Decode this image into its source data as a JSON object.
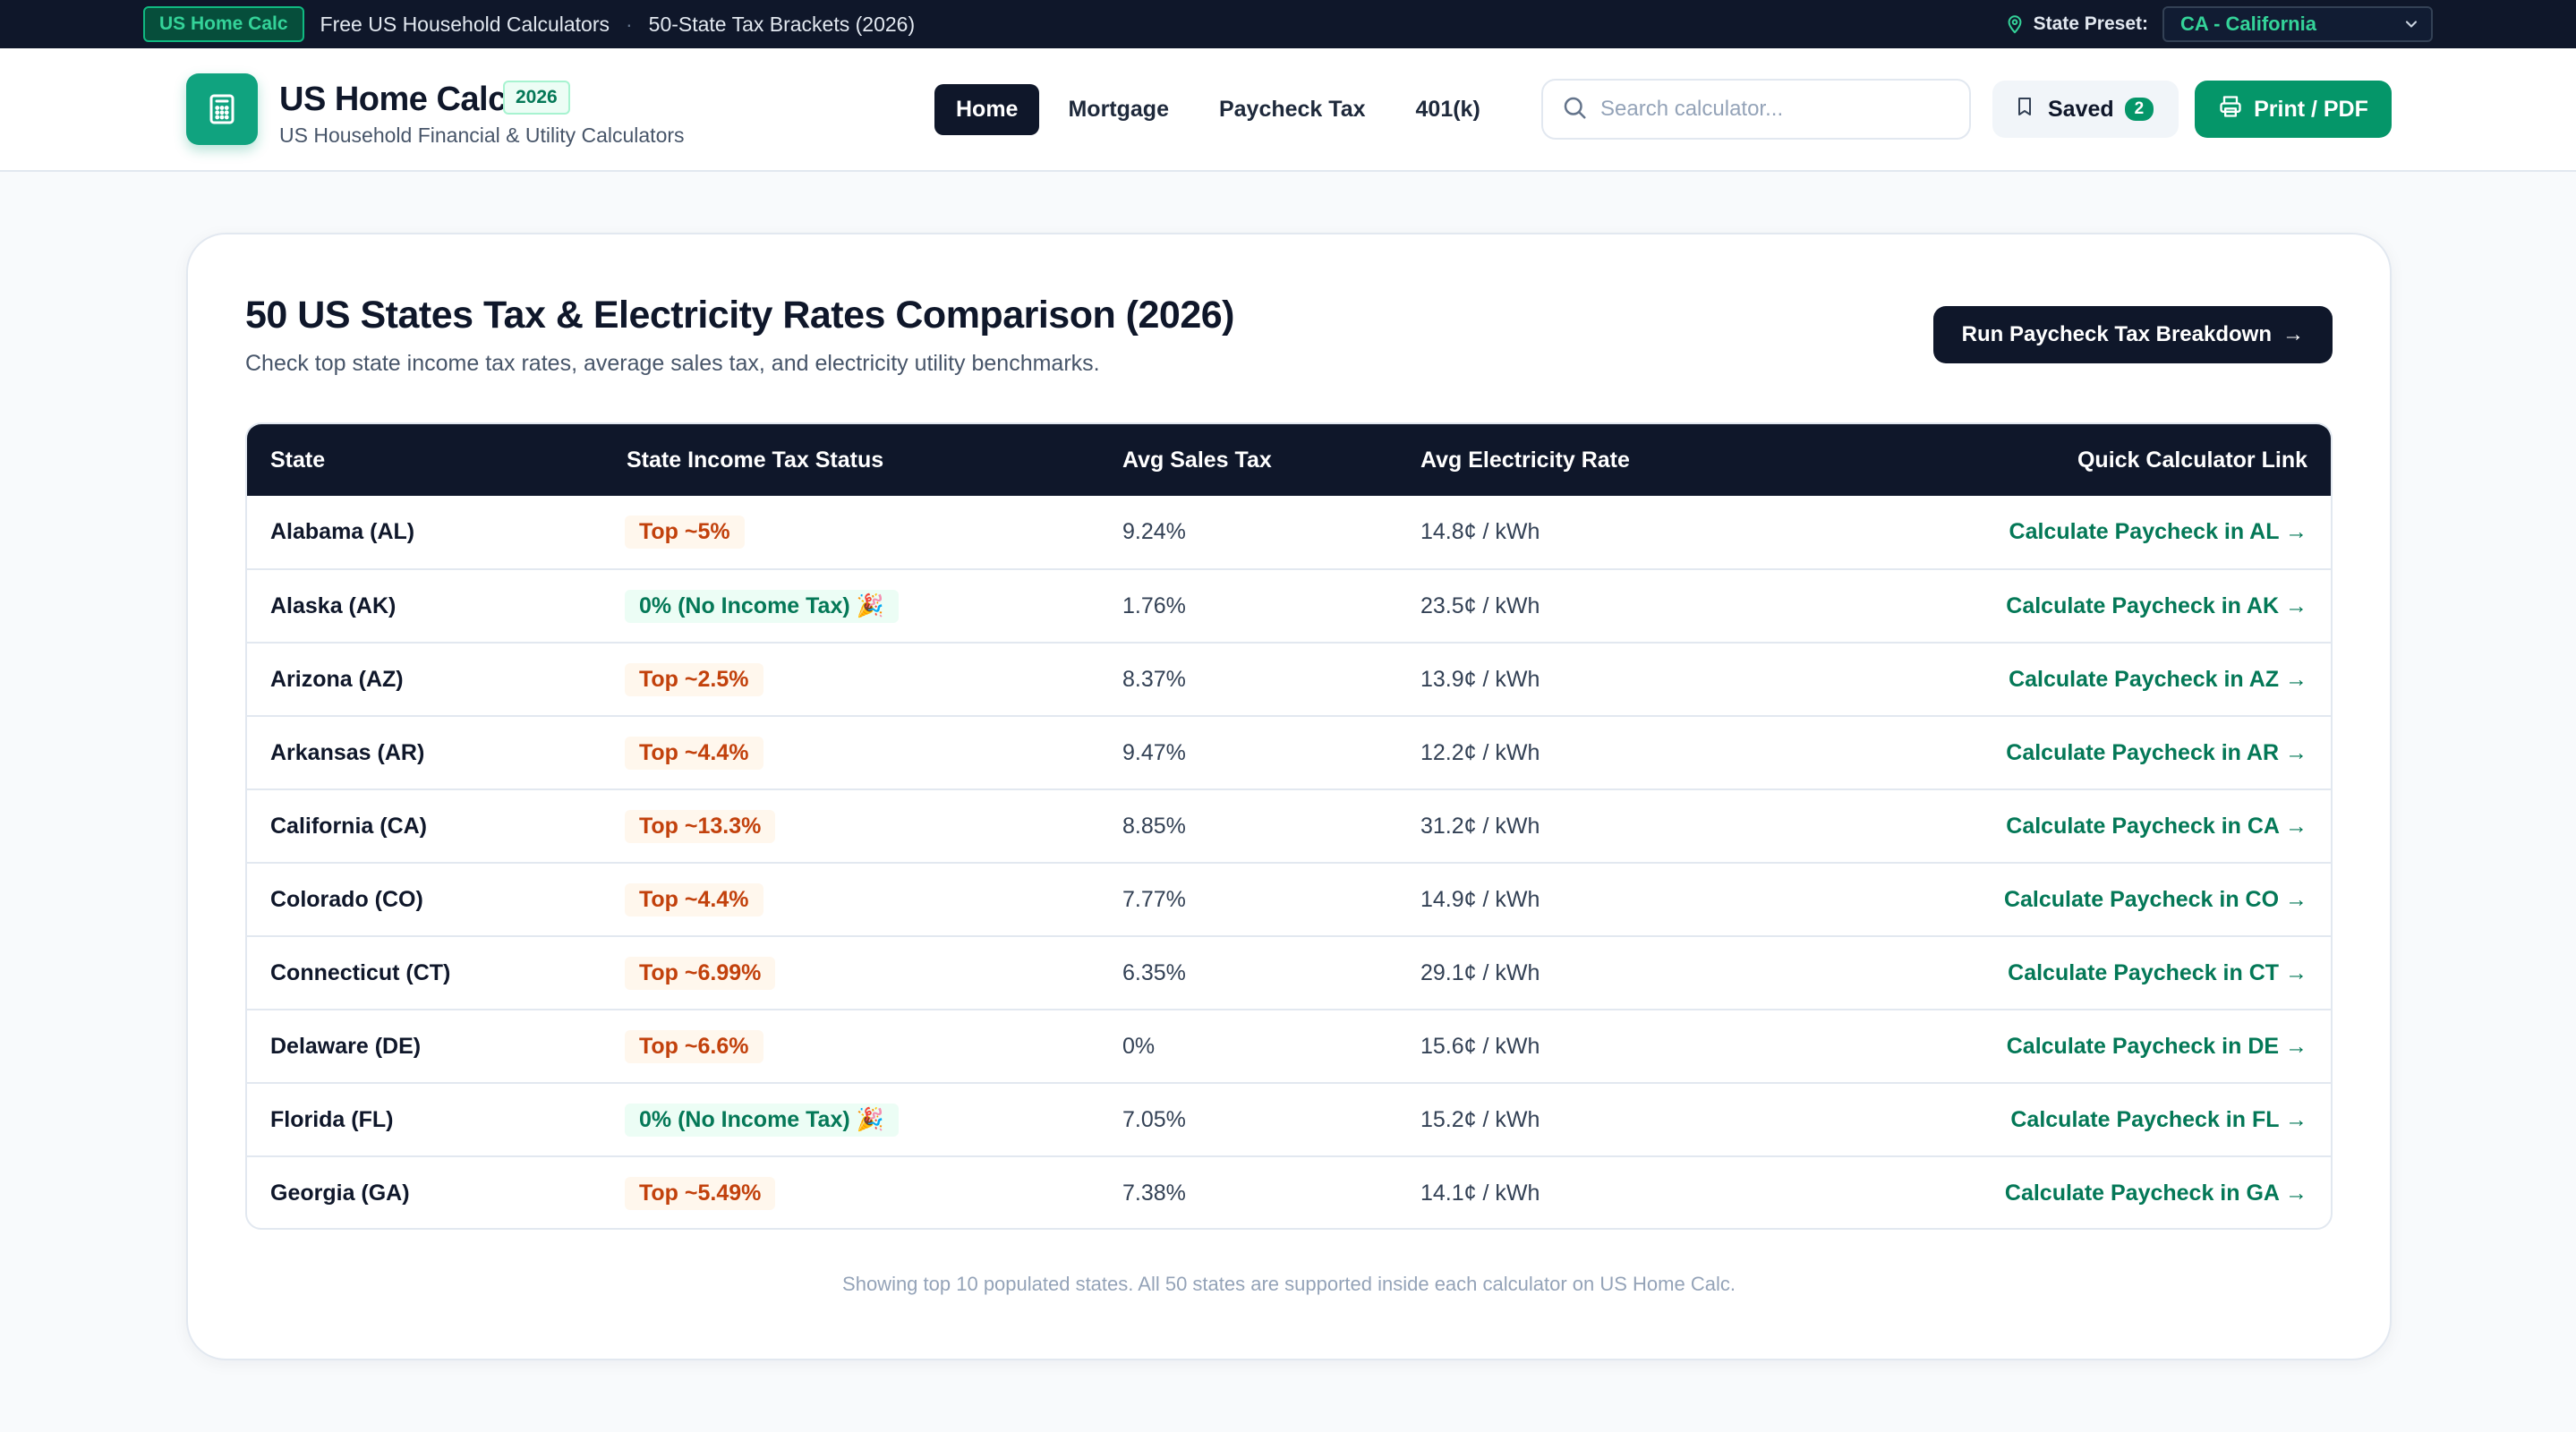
{
  "topbar": {
    "brand": "US Home Calc",
    "link_calculators": "Free US Household Calculators",
    "separator": "·",
    "link_brackets": "50-State Tax Brackets (2026)",
    "preset_label": "State Preset:",
    "preset_value": "CA - California"
  },
  "header": {
    "brand_name": "US Home Calc",
    "year_badge": "2026",
    "brand_sub": "US Household Financial & Utility Calculators",
    "nav": [
      "Home",
      "Mortgage",
      "Paycheck Tax",
      "401(k)"
    ],
    "search_placeholder": "Search calculator...",
    "saved_label": "Saved",
    "saved_count": "2",
    "print_label": "Print / PDF"
  },
  "card": {
    "title": "50 US States Tax & Electricity Rates Comparison (2026)",
    "subtitle": "Check top state income tax rates, average sales tax, and electricity utility benchmarks.",
    "run_button": "Run Paycheck Tax Breakdown",
    "run_arrow": "→",
    "footnote": "Showing top 10 populated states. All 50 states are supported inside each calculator on US Home Calc."
  },
  "table": {
    "headers": [
      "State",
      "State Income Tax Status",
      "Avg Sales Tax",
      "Avg Electricity Rate",
      "Quick Calculator Link"
    ],
    "rows": [
      {
        "state": "Alabama (AL)",
        "tax": "Top ~5%",
        "zero": false,
        "sales": "9.24%",
        "elec": "14.8¢ / kWh",
        "link": "Calculate Paycheck in AL →"
      },
      {
        "state": "Alaska (AK)",
        "tax": "0% (No Income Tax) 🎉",
        "zero": true,
        "sales": "1.76%",
        "elec": "23.5¢ / kWh",
        "link": "Calculate Paycheck in AK →"
      },
      {
        "state": "Arizona (AZ)",
        "tax": "Top ~2.5%",
        "zero": false,
        "sales": "8.37%",
        "elec": "13.9¢ / kWh",
        "link": "Calculate Paycheck in AZ →"
      },
      {
        "state": "Arkansas (AR)",
        "tax": "Top ~4.4%",
        "zero": false,
        "sales": "9.47%",
        "elec": "12.2¢ / kWh",
        "link": "Calculate Paycheck in AR →"
      },
      {
        "state": "California (CA)",
        "tax": "Top ~13.3%",
        "zero": false,
        "sales": "8.85%",
        "elec": "31.2¢ / kWh",
        "link": "Calculate Paycheck in CA →"
      },
      {
        "state": "Colorado (CO)",
        "tax": "Top ~4.4%",
        "zero": false,
        "sales": "7.77%",
        "elec": "14.9¢ / kWh",
        "link": "Calculate Paycheck in CO →"
      },
      {
        "state": "Connecticut (CT)",
        "tax": "Top ~6.99%",
        "zero": false,
        "sales": "6.35%",
        "elec": "29.1¢ / kWh",
        "link": "Calculate Paycheck in CT →"
      },
      {
        "state": "Delaware (DE)",
        "tax": "Top ~6.6%",
        "zero": false,
        "sales": "0%",
        "elec": "15.6¢ / kWh",
        "link": "Calculate Paycheck in DE →"
      },
      {
        "state": "Florida (FL)",
        "tax": "0% (No Income Tax) 🎉",
        "zero": true,
        "sales": "7.05%",
        "elec": "15.2¢ / kWh",
        "link": "Calculate Paycheck in FL →"
      },
      {
        "state": "Georgia (GA)",
        "tax": "Top ~5.49%",
        "zero": false,
        "sales": "7.38%",
        "elec": "14.1¢ / kWh",
        "link": "Calculate Paycheck in GA →"
      }
    ]
  },
  "colors": {
    "navy": "#0f172a",
    "accent_green": "#059669",
    "tax_orange": "#c2410c",
    "tax_green": "#047857"
  }
}
